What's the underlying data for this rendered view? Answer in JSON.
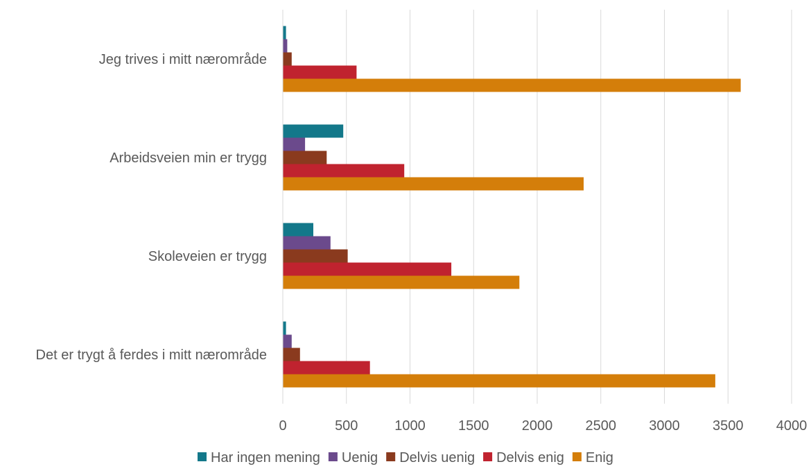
{
  "chart_data": {
    "type": "bar",
    "orientation": "horizontal",
    "categories": [
      "Det er trygt å ferdes i mitt nærområde",
      "Skoleveien er trygg",
      "Arbeidsveien min er trygg",
      "Jeg trives i mitt nærområde"
    ],
    "series": [
      {
        "name": "Har ingen mening",
        "color": "#13788a",
        "values": [
          25,
          240,
          475,
          25
        ]
      },
      {
        "name": "Uenig",
        "color": "#6b4a8c",
        "values": [
          70,
          375,
          175,
          35
        ]
      },
      {
        "name": "Delvis uenig",
        "color": "#8a3a1e",
        "values": [
          135,
          510,
          345,
          70
        ]
      },
      {
        "name": "Delvis enig",
        "color": "#c0232f",
        "values": [
          685,
          1325,
          955,
          580
        ]
      },
      {
        "name": "Enig",
        "color": "#d47e0a",
        "values": [
          3400,
          1860,
          2365,
          3600
        ]
      }
    ],
    "xlim": [
      0,
      4000
    ],
    "xticks": [
      "0",
      "500",
      "1000",
      "1500",
      "2000",
      "2500",
      "3000",
      "3500",
      "4000"
    ],
    "grid": true,
    "legend_position": "bottom",
    "title": "",
    "xlabel": "",
    "ylabel": ""
  }
}
